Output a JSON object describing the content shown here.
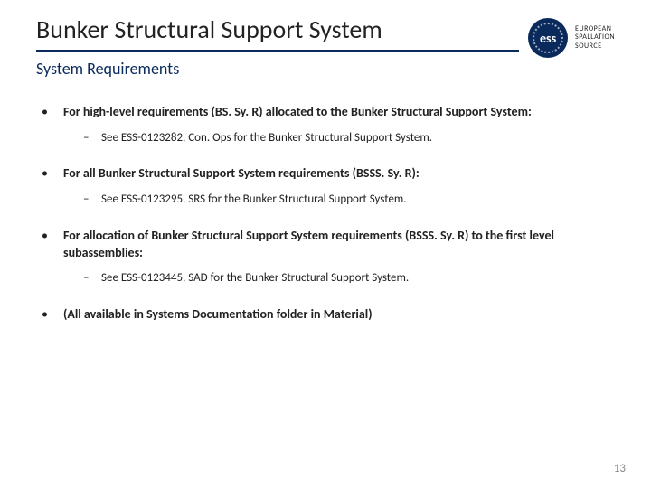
{
  "header": {
    "title": "Bunker Structural Support System",
    "subtitle": "System Requirements",
    "logo_abbrev": "ess",
    "logo_line1": "EUROPEAN",
    "logo_line2": "SPALLATION",
    "logo_line3": "SOURCE",
    "rule_color": "#0a2a5c"
  },
  "bullets": [
    {
      "text": "For high-level requirements (BS. Sy. R) allocated to the Bunker Structural Support System:",
      "sub": "See ESS-0123282, Con. Ops for the Bunker Structural Support System."
    },
    {
      "text": "For all Bunker Structural Support System requirements (BSSS. Sy. R):",
      "sub": "See ESS-0123295, SRS for the Bunker Structural Support System."
    },
    {
      "text": "For allocation of Bunker Structural Support System requirements (BSSS. Sy. R) to the first level subassemblies:",
      "sub": "See ESS-0123445, SAD for the Bunker Structural Support System."
    },
    {
      "text": "(All available in Systems Documentation folder in Material)",
      "sub": null
    }
  ],
  "page_number": "13"
}
